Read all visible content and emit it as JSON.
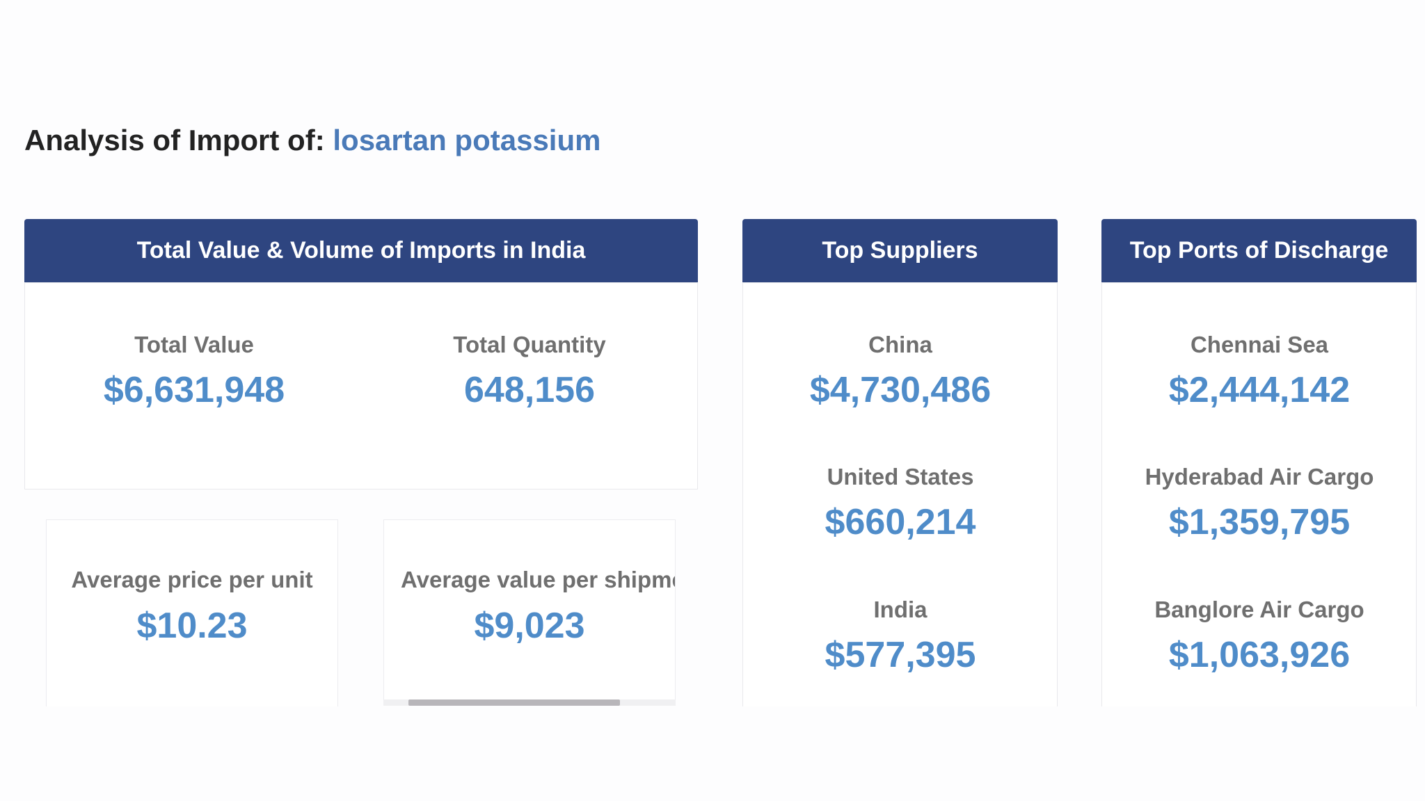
{
  "title": {
    "prefix": "Analysis of Import of:",
    "product": "losartan potassium"
  },
  "totals_panel": {
    "header": "Total Value & Volume of Imports in India",
    "total_value_label": "Total Value",
    "total_value": "$6,631,948",
    "total_quantity_label": "Total Quantity",
    "total_quantity": "648,156",
    "avg_price_label": "Average price per unit",
    "avg_price": "$10.23",
    "avg_shipment_label": "Average value per shipment",
    "avg_shipment": "$9,023"
  },
  "suppliers_panel": {
    "header": "Top Suppliers",
    "items": [
      {
        "name": "China",
        "value": "$4,730,486"
      },
      {
        "name": "United States",
        "value": "$660,214"
      },
      {
        "name": "India",
        "value": "$577,395"
      }
    ]
  },
  "ports_panel": {
    "header": "Top Ports of Discharge",
    "items": [
      {
        "name": "Chennai Sea",
        "value": "$2,444,142"
      },
      {
        "name": "Hyderabad Air Cargo",
        "value": "$1,359,795"
      },
      {
        "name": "Banglore Air Cargo",
        "value": "$1,063,926"
      }
    ]
  }
}
